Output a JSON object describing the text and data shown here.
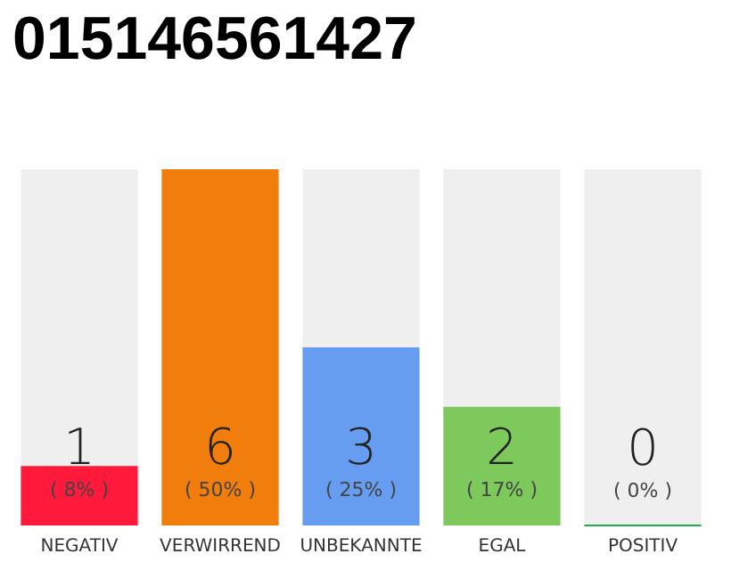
{
  "chart_data": {
    "type": "bar",
    "title": "015146561427",
    "categories": [
      "NEGATIV",
      "VERWIRREND",
      "UNBEKANNTE",
      "EGAL",
      "POSITIV"
    ],
    "values": [
      1,
      6,
      3,
      2,
      0
    ],
    "colors": [
      "#ff1a3c",
      "#f07d0c",
      "#669df0",
      "#7dc95c",
      "#1faa4a"
    ],
    "value_labels": [
      "1\n( 8% )",
      "6\n( 50% )",
      "3\n( 25% )",
      "2\n( 17% )",
      "0\n( 0% )"
    ]
  }
}
